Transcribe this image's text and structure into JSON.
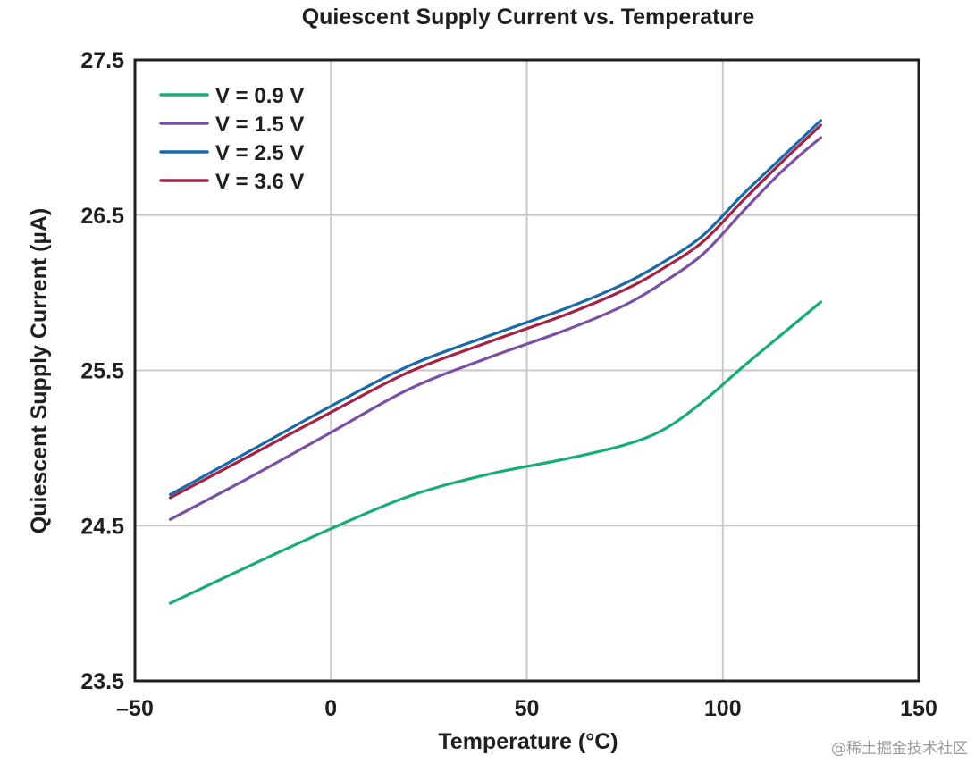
{
  "chart_data": {
    "type": "line",
    "title": "Quiescent Supply Current vs. Temperature",
    "xlabel": "Temperature (°C)",
    "ylabel": "Quiescent Supply Current (µA)",
    "xlim": [
      -50,
      150
    ],
    "ylim": [
      23.5,
      27.5
    ],
    "xticks": [
      -50,
      0,
      50,
      100,
      150
    ],
    "xtick_labels": [
      "–50",
      "0",
      "50",
      "100",
      "150"
    ],
    "yticks": [
      23.5,
      24.5,
      25.5,
      26.5,
      27.5
    ],
    "ytick_labels": [
      "23.5",
      "24.5",
      "25.5",
      "26.5",
      "27.5"
    ],
    "grid": true,
    "legend_position": "top-left",
    "series": [
      {
        "name": "V = 0.9 V",
        "color": "#1aab7a",
        "points": [
          [
            -41,
            24.0
          ],
          [
            -20,
            24.25
          ],
          [
            0,
            24.48
          ],
          [
            20,
            24.69
          ],
          [
            40,
            24.83
          ],
          [
            60,
            24.93
          ],
          [
            75,
            25.02
          ],
          [
            85,
            25.12
          ],
          [
            95,
            25.3
          ],
          [
            105,
            25.52
          ],
          [
            115,
            25.73
          ],
          [
            125,
            25.94
          ]
        ]
      },
      {
        "name": "V = 1.5 V",
        "color": "#7b4fa3",
        "points": [
          [
            -41,
            24.54
          ],
          [
            -20,
            24.82
          ],
          [
            0,
            25.1
          ],
          [
            20,
            25.38
          ],
          [
            40,
            25.58
          ],
          [
            60,
            25.76
          ],
          [
            75,
            25.92
          ],
          [
            85,
            26.07
          ],
          [
            95,
            26.25
          ],
          [
            105,
            26.52
          ],
          [
            115,
            26.78
          ],
          [
            125,
            27.0
          ]
        ]
      },
      {
        "name": "V = 2.5 V",
        "color": "#1a69a8",
        "points": [
          [
            -41,
            24.7
          ],
          [
            -20,
            24.99
          ],
          [
            0,
            25.27
          ],
          [
            20,
            25.53
          ],
          [
            40,
            25.72
          ],
          [
            60,
            25.9
          ],
          [
            75,
            26.06
          ],
          [
            85,
            26.2
          ],
          [
            95,
            26.37
          ],
          [
            105,
            26.63
          ],
          [
            115,
            26.87
          ],
          [
            125,
            27.11
          ]
        ]
      },
      {
        "name": "V = 3.6 V",
        "color": "#a52244",
        "points": [
          [
            -41,
            24.68
          ],
          [
            -20,
            24.96
          ],
          [
            0,
            25.23
          ],
          [
            20,
            25.49
          ],
          [
            40,
            25.68
          ],
          [
            60,
            25.86
          ],
          [
            75,
            26.02
          ],
          [
            85,
            26.16
          ],
          [
            95,
            26.33
          ],
          [
            105,
            26.59
          ],
          [
            115,
            26.84
          ],
          [
            125,
            27.08
          ]
        ]
      }
    ]
  },
  "watermark": "@稀土掘金技术社区"
}
